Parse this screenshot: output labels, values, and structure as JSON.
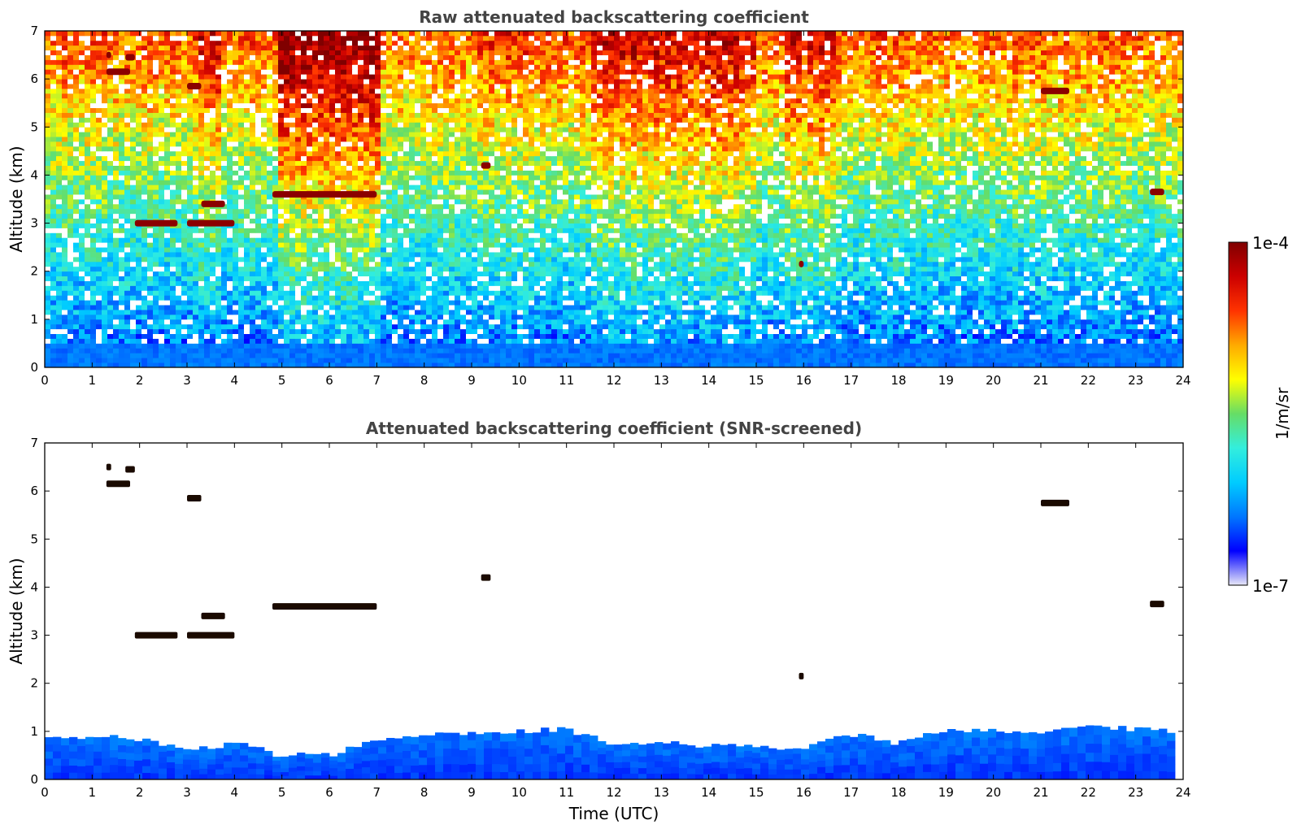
{
  "chart_data": [
    {
      "type": "heatmap",
      "title": "Raw attenuated backscattering coefficient",
      "xlabel": "",
      "ylabel": "Altitude (km)",
      "xlim": [
        0,
        24
      ],
      "ylim": [
        0,
        7
      ],
      "xticks": [
        "0",
        "1",
        "2",
        "3",
        "4",
        "5",
        "6",
        "7",
        "8",
        "9",
        "10",
        "11",
        "12",
        "13",
        "14",
        "15",
        "16",
        "17",
        "18",
        "19",
        "20",
        "21",
        "22",
        "23",
        "24"
      ],
      "yticks": [
        "0",
        "1",
        "2",
        "3",
        "4",
        "5",
        "6",
        "7"
      ],
      "cloud_layers": [
        {
          "t_start": 1.3,
          "t_end": 1.8,
          "alt": 6.15
        },
        {
          "t_start": 1.3,
          "t_end": 1.4,
          "alt": 6.5
        },
        {
          "t_start": 1.7,
          "t_end": 1.9,
          "alt": 6.45
        },
        {
          "t_start": 3.0,
          "t_end": 3.3,
          "alt": 5.85
        },
        {
          "t_start": 1.9,
          "t_end": 2.8,
          "alt": 3.0
        },
        {
          "t_start": 3.0,
          "t_end": 4.0,
          "alt": 3.0
        },
        {
          "t_start": 3.3,
          "t_end": 3.8,
          "alt": 3.4
        },
        {
          "t_start": 4.8,
          "t_end": 7.0,
          "alt": 3.6
        },
        {
          "t_start": 9.2,
          "t_end": 9.4,
          "alt": 4.2
        },
        {
          "t_start": 15.9,
          "t_end": 16.0,
          "alt": 2.15
        },
        {
          "t_start": 21.0,
          "t_end": 21.6,
          "alt": 5.75
        },
        {
          "t_start": 23.3,
          "t_end": 23.6,
          "alt": 3.65
        }
      ],
      "boundary_layer_top_km": 0.6,
      "colorbar": {
        "label": "1/m/sr",
        "max_label": "1e-4",
        "min_label": "1e-7",
        "scale": "log"
      }
    },
    {
      "type": "heatmap",
      "title": "Attenuated backscattering coefficient (SNR-screened)",
      "xlabel": "Time (UTC)",
      "ylabel": "Altitude (km)",
      "xlim": [
        0,
        24
      ],
      "ylim": [
        0,
        7
      ],
      "xticks": [
        "0",
        "1",
        "2",
        "3",
        "4",
        "5",
        "6",
        "7",
        "8",
        "9",
        "10",
        "11",
        "12",
        "13",
        "14",
        "15",
        "16",
        "17",
        "18",
        "19",
        "20",
        "21",
        "22",
        "23",
        "24"
      ],
      "yticks": [
        "0",
        "1",
        "2",
        "3",
        "4",
        "5",
        "6",
        "7"
      ],
      "boundary_layer_top": {
        "t": [
          0,
          1,
          2,
          3,
          4,
          5,
          6,
          7,
          8,
          9,
          10,
          11,
          12,
          13,
          14,
          15,
          16,
          17,
          18,
          19,
          20,
          21,
          22,
          23,
          23.9
        ],
        "alt": [
          0.9,
          0.9,
          0.85,
          0.6,
          0.75,
          0.5,
          0.5,
          0.85,
          0.95,
          0.95,
          1.0,
          1.05,
          0.75,
          0.8,
          0.7,
          0.7,
          0.65,
          0.95,
          0.75,
          1.05,
          1.0,
          1.0,
          1.1,
          1.05,
          1.0
        ]
      }
    }
  ],
  "colors": {
    "scale": [
      "#e8e8f8",
      "#0000ff",
      "#0077ff",
      "#00ccff",
      "#33eedd",
      "#66dd66",
      "#ffff00",
      "#ffaa00",
      "#ff3300",
      "#cc0000",
      "#800000"
    ],
    "title_color": "#444444"
  }
}
